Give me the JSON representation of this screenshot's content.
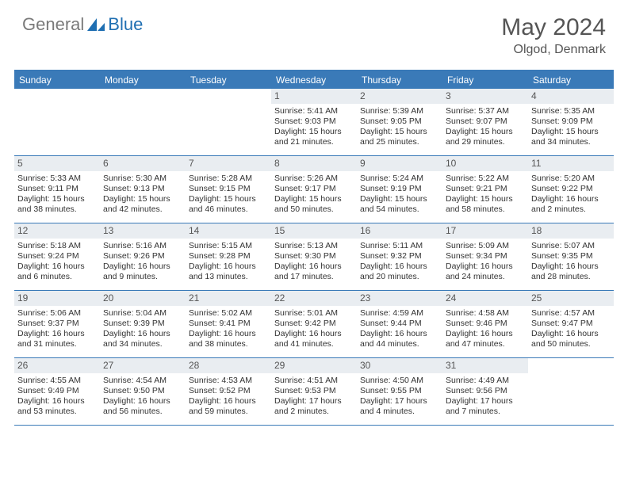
{
  "brand": {
    "general": "General",
    "blue": "Blue"
  },
  "title": "May 2024",
  "location": "Olgod, Denmark",
  "colors": {
    "header_bar": "#3a7ab8",
    "daynum_bg": "#e9edf1",
    "logo_gray": "#7a7a7a",
    "logo_blue": "#1f6fb2",
    "text": "#333333",
    "title_text": "#555555"
  },
  "day_names": [
    "Sunday",
    "Monday",
    "Tuesday",
    "Wednesday",
    "Thursday",
    "Friday",
    "Saturday"
  ],
  "weeks": [
    [
      {
        "n": "",
        "empty": true
      },
      {
        "n": "",
        "empty": true
      },
      {
        "n": "",
        "empty": true
      },
      {
        "n": "1",
        "sunrise": "Sunrise: 5:41 AM",
        "sunset": "Sunset: 9:03 PM",
        "daylight": "Daylight: 15 hours and 21 minutes."
      },
      {
        "n": "2",
        "sunrise": "Sunrise: 5:39 AM",
        "sunset": "Sunset: 9:05 PM",
        "daylight": "Daylight: 15 hours and 25 minutes."
      },
      {
        "n": "3",
        "sunrise": "Sunrise: 5:37 AM",
        "sunset": "Sunset: 9:07 PM",
        "daylight": "Daylight: 15 hours and 29 minutes."
      },
      {
        "n": "4",
        "sunrise": "Sunrise: 5:35 AM",
        "sunset": "Sunset: 9:09 PM",
        "daylight": "Daylight: 15 hours and 34 minutes."
      }
    ],
    [
      {
        "n": "5",
        "sunrise": "Sunrise: 5:33 AM",
        "sunset": "Sunset: 9:11 PM",
        "daylight": "Daylight: 15 hours and 38 minutes."
      },
      {
        "n": "6",
        "sunrise": "Sunrise: 5:30 AM",
        "sunset": "Sunset: 9:13 PM",
        "daylight": "Daylight: 15 hours and 42 minutes."
      },
      {
        "n": "7",
        "sunrise": "Sunrise: 5:28 AM",
        "sunset": "Sunset: 9:15 PM",
        "daylight": "Daylight: 15 hours and 46 minutes."
      },
      {
        "n": "8",
        "sunrise": "Sunrise: 5:26 AM",
        "sunset": "Sunset: 9:17 PM",
        "daylight": "Daylight: 15 hours and 50 minutes."
      },
      {
        "n": "9",
        "sunrise": "Sunrise: 5:24 AM",
        "sunset": "Sunset: 9:19 PM",
        "daylight": "Daylight: 15 hours and 54 minutes."
      },
      {
        "n": "10",
        "sunrise": "Sunrise: 5:22 AM",
        "sunset": "Sunset: 9:21 PM",
        "daylight": "Daylight: 15 hours and 58 minutes."
      },
      {
        "n": "11",
        "sunrise": "Sunrise: 5:20 AM",
        "sunset": "Sunset: 9:22 PM",
        "daylight": "Daylight: 16 hours and 2 minutes."
      }
    ],
    [
      {
        "n": "12",
        "sunrise": "Sunrise: 5:18 AM",
        "sunset": "Sunset: 9:24 PM",
        "daylight": "Daylight: 16 hours and 6 minutes."
      },
      {
        "n": "13",
        "sunrise": "Sunrise: 5:16 AM",
        "sunset": "Sunset: 9:26 PM",
        "daylight": "Daylight: 16 hours and 9 minutes."
      },
      {
        "n": "14",
        "sunrise": "Sunrise: 5:15 AM",
        "sunset": "Sunset: 9:28 PM",
        "daylight": "Daylight: 16 hours and 13 minutes."
      },
      {
        "n": "15",
        "sunrise": "Sunrise: 5:13 AM",
        "sunset": "Sunset: 9:30 PM",
        "daylight": "Daylight: 16 hours and 17 minutes."
      },
      {
        "n": "16",
        "sunrise": "Sunrise: 5:11 AM",
        "sunset": "Sunset: 9:32 PM",
        "daylight": "Daylight: 16 hours and 20 minutes."
      },
      {
        "n": "17",
        "sunrise": "Sunrise: 5:09 AM",
        "sunset": "Sunset: 9:34 PM",
        "daylight": "Daylight: 16 hours and 24 minutes."
      },
      {
        "n": "18",
        "sunrise": "Sunrise: 5:07 AM",
        "sunset": "Sunset: 9:35 PM",
        "daylight": "Daylight: 16 hours and 28 minutes."
      }
    ],
    [
      {
        "n": "19",
        "sunrise": "Sunrise: 5:06 AM",
        "sunset": "Sunset: 9:37 PM",
        "daylight": "Daylight: 16 hours and 31 minutes."
      },
      {
        "n": "20",
        "sunrise": "Sunrise: 5:04 AM",
        "sunset": "Sunset: 9:39 PM",
        "daylight": "Daylight: 16 hours and 34 minutes."
      },
      {
        "n": "21",
        "sunrise": "Sunrise: 5:02 AM",
        "sunset": "Sunset: 9:41 PM",
        "daylight": "Daylight: 16 hours and 38 minutes."
      },
      {
        "n": "22",
        "sunrise": "Sunrise: 5:01 AM",
        "sunset": "Sunset: 9:42 PM",
        "daylight": "Daylight: 16 hours and 41 minutes."
      },
      {
        "n": "23",
        "sunrise": "Sunrise: 4:59 AM",
        "sunset": "Sunset: 9:44 PM",
        "daylight": "Daylight: 16 hours and 44 minutes."
      },
      {
        "n": "24",
        "sunrise": "Sunrise: 4:58 AM",
        "sunset": "Sunset: 9:46 PM",
        "daylight": "Daylight: 16 hours and 47 minutes."
      },
      {
        "n": "25",
        "sunrise": "Sunrise: 4:57 AM",
        "sunset": "Sunset: 9:47 PM",
        "daylight": "Daylight: 16 hours and 50 minutes."
      }
    ],
    [
      {
        "n": "26",
        "sunrise": "Sunrise: 4:55 AM",
        "sunset": "Sunset: 9:49 PM",
        "daylight": "Daylight: 16 hours and 53 minutes."
      },
      {
        "n": "27",
        "sunrise": "Sunrise: 4:54 AM",
        "sunset": "Sunset: 9:50 PM",
        "daylight": "Daylight: 16 hours and 56 minutes."
      },
      {
        "n": "28",
        "sunrise": "Sunrise: 4:53 AM",
        "sunset": "Sunset: 9:52 PM",
        "daylight": "Daylight: 16 hours and 59 minutes."
      },
      {
        "n": "29",
        "sunrise": "Sunrise: 4:51 AM",
        "sunset": "Sunset: 9:53 PM",
        "daylight": "Daylight: 17 hours and 2 minutes."
      },
      {
        "n": "30",
        "sunrise": "Sunrise: 4:50 AM",
        "sunset": "Sunset: 9:55 PM",
        "daylight": "Daylight: 17 hours and 4 minutes."
      },
      {
        "n": "31",
        "sunrise": "Sunrise: 4:49 AM",
        "sunset": "Sunset: 9:56 PM",
        "daylight": "Daylight: 17 hours and 7 minutes."
      },
      {
        "n": "",
        "empty": true
      }
    ]
  ]
}
